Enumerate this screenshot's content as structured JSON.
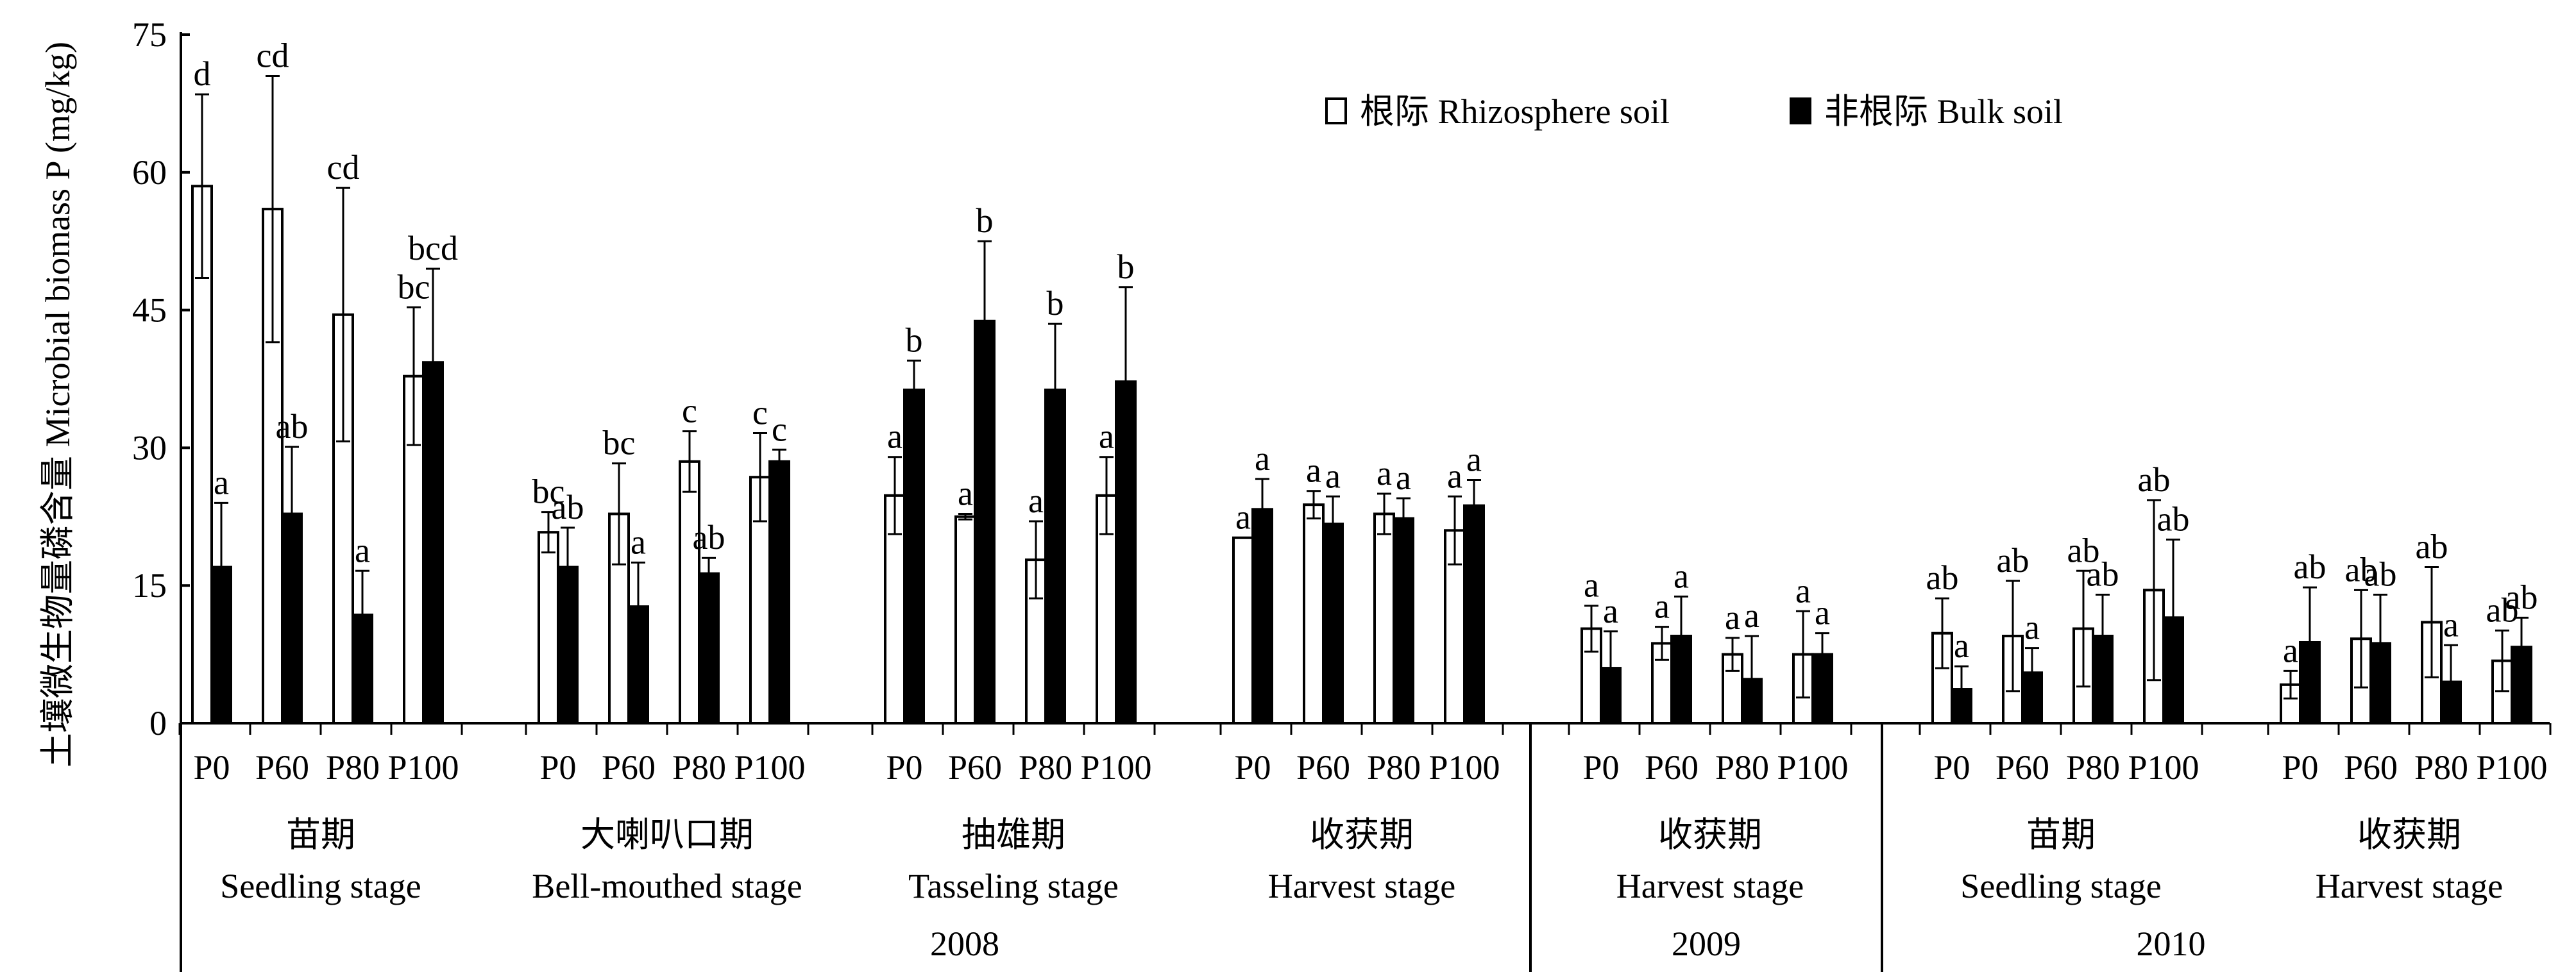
{
  "chart_data": {
    "type": "bar",
    "ylabel": "土壤微生物量磷含量 Microbial biomass P (mg/kg)",
    "ylim": [
      0,
      75
    ],
    "yticks": [
      "0",
      "15",
      "30",
      "45",
      "60",
      "75"
    ],
    "grid": false,
    "legend_position": "top-right",
    "series": [
      {
        "name": "根际 Rhizosphere soil",
        "fill": "#ffffff",
        "stroke": "#000000"
      },
      {
        "name": "非根际 Bulk soil",
        "fill": "#000000",
        "stroke": "#000000"
      }
    ],
    "groups": [
      {
        "stage_cn": "苗期",
        "stage_en": "Seedling stage",
        "year": "2008",
        "categories": [
          {
            "label": "P0",
            "rhizo": {
              "value": 58.5,
              "err": 10.0,
              "letter": "d"
            },
            "bulk": {
              "value": 17.0,
              "err": 7.0,
              "letter": "a"
            }
          },
          {
            "label": "P60",
            "rhizo": {
              "value": 56.0,
              "err": 14.5,
              "letter": "cd"
            },
            "bulk": {
              "value": 22.8,
              "err": 7.3,
              "letter": "ab"
            }
          },
          {
            "label": "P80",
            "rhizo": {
              "value": 44.5,
              "err": 13.8,
              "letter": "cd"
            },
            "bulk": {
              "value": 11.8,
              "err": 4.8,
              "letter": "a"
            }
          },
          {
            "label": "P100",
            "rhizo": {
              "value": 37.8,
              "err": 7.5,
              "letter": "bc"
            },
            "bulk": {
              "value": 39.3,
              "err": 10.2,
              "letter": "bcd"
            }
          }
        ]
      },
      {
        "stage_cn": "大喇叭口期",
        "stage_en": "Bell-mouthed stage",
        "year": "2008",
        "categories": [
          {
            "label": "P0",
            "rhizo": {
              "value": 20.8,
              "err": 2.2,
              "letter": "bc"
            },
            "bulk": {
              "value": 17.0,
              "err": 4.3,
              "letter": "ab"
            }
          },
          {
            "label": "P60",
            "rhizo": {
              "value": 22.8,
              "err": 5.5,
              "letter": "bc"
            },
            "bulk": {
              "value": 12.7,
              "err": 4.8,
              "letter": "a"
            }
          },
          {
            "label": "P80",
            "rhizo": {
              "value": 28.5,
              "err": 3.3,
              "letter": "c"
            },
            "bulk": {
              "value": 16.3,
              "err": 1.7,
              "letter": "ab"
            }
          },
          {
            "label": "P100",
            "rhizo": {
              "value": 26.8,
              "err": 4.8,
              "letter": "c"
            },
            "bulk": {
              "value": 28.5,
              "err": 1.3,
              "letter": "c"
            }
          }
        ]
      },
      {
        "stage_cn": "抽雄期",
        "stage_en": "Tasseling stage",
        "year": "2008",
        "categories": [
          {
            "label": "P0",
            "rhizo": {
              "value": 24.8,
              "err": 4.2,
              "letter": "a"
            },
            "bulk": {
              "value": 36.3,
              "err": 3.2,
              "letter": "b"
            }
          },
          {
            "label": "P60",
            "rhizo": {
              "value": 22.5,
              "err": 0.3,
              "letter": "a"
            },
            "bulk": {
              "value": 43.8,
              "err": 8.7,
              "letter": "b"
            }
          },
          {
            "label": "P80",
            "rhizo": {
              "value": 17.8,
              "err": 4.2,
              "letter": "a"
            },
            "bulk": {
              "value": 36.3,
              "err": 7.2,
              "letter": "b"
            }
          },
          {
            "label": "P100",
            "rhizo": {
              "value": 24.8,
              "err": 4.2,
              "letter": "a"
            },
            "bulk": {
              "value": 37.2,
              "err": 10.3,
              "letter": "b"
            }
          }
        ]
      },
      {
        "stage_cn": "收获期",
        "stage_en": "Harvest stage",
        "year": "2008",
        "categories": [
          {
            "label": "P0",
            "rhizo": {
              "value": 20.2,
              "err": 0.0,
              "letter": "a"
            },
            "bulk": {
              "value": 23.3,
              "err": 3.3,
              "letter": "a"
            }
          },
          {
            "label": "P60",
            "rhizo": {
              "value": 23.8,
              "err": 1.5,
              "letter": "a"
            },
            "bulk": {
              "value": 21.7,
              "err": 3.0,
              "letter": "a"
            }
          },
          {
            "label": "P80",
            "rhizo": {
              "value": 22.8,
              "err": 2.2,
              "letter": "a"
            },
            "bulk": {
              "value": 22.3,
              "err": 2.2,
              "letter": "a"
            }
          },
          {
            "label": "P100",
            "rhizo": {
              "value": 21.0,
              "err": 3.7,
              "letter": "a"
            },
            "bulk": {
              "value": 23.7,
              "err": 2.8,
              "letter": "a"
            }
          }
        ]
      },
      {
        "stage_cn": "收获期",
        "stage_en": "Harvest stage",
        "year": "2009",
        "categories": [
          {
            "label": "P0",
            "rhizo": {
              "value": 10.3,
              "err": 2.5,
              "letter": "a"
            },
            "bulk": {
              "value": 6.0,
              "err": 4.0,
              "letter": "a"
            }
          },
          {
            "label": "P60",
            "rhizo": {
              "value": 8.7,
              "err": 1.8,
              "letter": "a"
            },
            "bulk": {
              "value": 9.5,
              "err": 4.3,
              "letter": "a"
            }
          },
          {
            "label": "P80",
            "rhizo": {
              "value": 7.5,
              "err": 1.8,
              "letter": "a"
            },
            "bulk": {
              "value": 4.8,
              "err": 4.7,
              "letter": "a"
            }
          },
          {
            "label": "P100",
            "rhizo": {
              "value": 7.5,
              "err": 4.7,
              "letter": "a"
            },
            "bulk": {
              "value": 7.5,
              "err": 2.3,
              "letter": "a"
            }
          }
        ]
      },
      {
        "stage_cn": "苗期",
        "stage_en": "Seedling stage",
        "year": "2010",
        "categories": [
          {
            "label": "P0",
            "rhizo": {
              "value": 9.8,
              "err": 3.8,
              "letter": "ab"
            },
            "bulk": {
              "value": 3.7,
              "err": 2.5,
              "letter": "a"
            }
          },
          {
            "label": "P60",
            "rhizo": {
              "value": 9.5,
              "err": 6.0,
              "letter": "ab"
            },
            "bulk": {
              "value": 5.5,
              "err": 2.7,
              "letter": "a"
            }
          },
          {
            "label": "P80",
            "rhizo": {
              "value": 10.3,
              "err": 6.3,
              "letter": "ab"
            },
            "bulk": {
              "value": 9.5,
              "err": 4.5,
              "letter": "ab"
            }
          },
          {
            "label": "P100",
            "rhizo": {
              "value": 14.5,
              "err": 9.8,
              "letter": "ab"
            },
            "bulk": {
              "value": 11.5,
              "err": 8.5,
              "letter": "ab"
            }
          }
        ]
      },
      {
        "stage_cn": "收获期",
        "stage_en": "Harvest stage",
        "year": "2010",
        "categories": [
          {
            "label": "P0",
            "rhizo": {
              "value": 4.2,
              "err": 1.5,
              "letter": "a"
            },
            "bulk": {
              "value": 8.8,
              "err": 6.0,
              "letter": "ab"
            }
          },
          {
            "label": "P60",
            "rhizo": {
              "value": 9.2,
              "err": 5.3,
              "letter": "ab"
            },
            "bulk": {
              "value": 8.7,
              "err": 5.3,
              "letter": "ab"
            }
          },
          {
            "label": "P80",
            "rhizo": {
              "value": 11.0,
              "err": 6.0,
              "letter": "ab"
            },
            "bulk": {
              "value": 4.5,
              "err": 4.0,
              "letter": "a"
            }
          },
          {
            "label": "P100",
            "rhizo": {
              "value": 6.8,
              "err": 3.3,
              "letter": "ab"
            },
            "bulk": {
              "value": 8.3,
              "err": 3.2,
              "letter": "ab"
            }
          }
        ]
      }
    ],
    "years": [
      "2008",
      "2009",
      "2010"
    ]
  }
}
